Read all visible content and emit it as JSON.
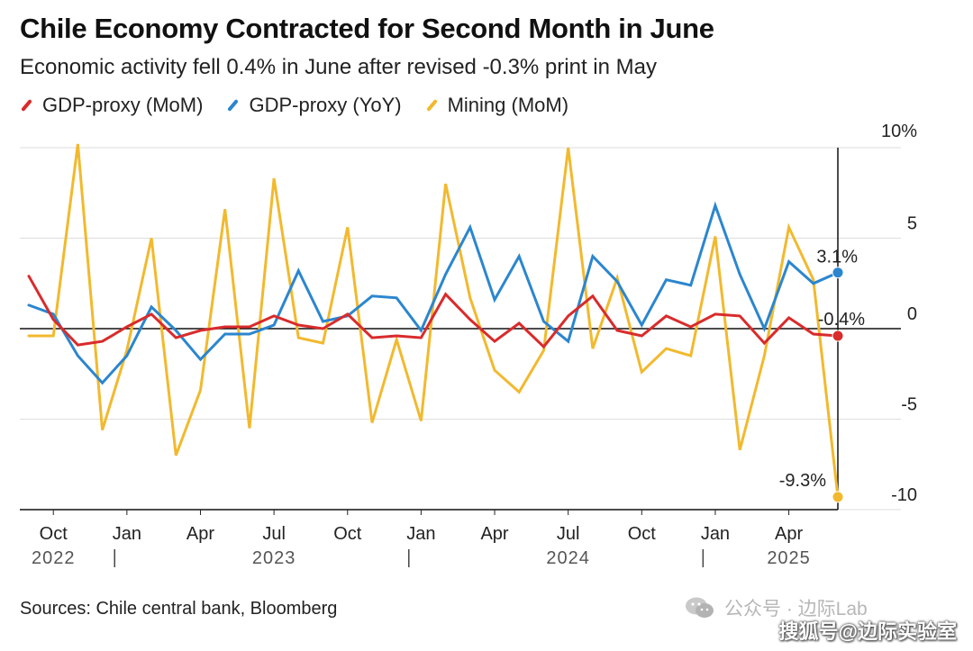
{
  "header": {
    "title": "Chile Economy Contracted for Second Month in June",
    "subtitle": "Economic activity fell 0.4% in June after revised -0.3% print in May"
  },
  "footer": {
    "source": "Sources: Chile central bank, Bloomberg"
  },
  "watermark": {
    "line1": "公众号 · 边际Lab",
    "line2": "搜狐号@边际实验室",
    "icon": "wechat-icon"
  },
  "colors": {
    "gdp_mom": "#d92b2b",
    "gdp_yoy": "#2b86cf",
    "mining_mom": "#f2b92e",
    "axis": "#111111",
    "grid": "#dddddd"
  },
  "chart_data": {
    "type": "line",
    "x": [
      "2022-09",
      "2022-10",
      "2022-11",
      "2022-12",
      "2023-01",
      "2023-02",
      "2023-03",
      "2023-04",
      "2023-05",
      "2023-06",
      "2023-07",
      "2023-08",
      "2023-09",
      "2023-10",
      "2023-11",
      "2023-12",
      "2024-01",
      "2024-02",
      "2024-03",
      "2024-04",
      "2024-05",
      "2024-06",
      "2024-07",
      "2024-08",
      "2024-09",
      "2024-10",
      "2024-11",
      "2024-12",
      "2025-01",
      "2025-02",
      "2025-03",
      "2025-04",
      "2025-05",
      "2025-06"
    ],
    "series": [
      {
        "name": "GDP-proxy (MoM)",
        "color": "#d92b2b",
        "values": [
          2.9,
          0.5,
          -0.9,
          -0.7,
          0.1,
          0.8,
          -0.5,
          -0.1,
          0.1,
          0.1,
          0.7,
          0.2,
          0.0,
          0.8,
          -0.5,
          -0.4,
          -0.5,
          1.9,
          0.5,
          -0.7,
          0.3,
          -1.0,
          0.7,
          1.8,
          -0.1,
          -0.4,
          0.7,
          0.1,
          0.8,
          0.7,
          -0.8,
          0.6,
          -0.3,
          -0.4
        ]
      },
      {
        "name": "GDP-proxy (YoY)",
        "color": "#2b86cf",
        "values": [
          1.3,
          0.8,
          -1.5,
          -3.0,
          -1.5,
          1.2,
          -0.1,
          -1.7,
          -0.3,
          -0.3,
          0.2,
          3.2,
          0.4,
          0.7,
          1.8,
          1.7,
          -0.1,
          3.0,
          5.6,
          1.6,
          4.0,
          0.4,
          -0.7,
          4.0,
          2.6,
          0.2,
          2.7,
          2.4,
          6.8,
          3.0,
          0.0,
          3.7,
          2.5,
          3.1
        ]
      },
      {
        "name": "Mining (MoM)",
        "color": "#f2b92e",
        "values": [
          -0.4,
          -0.4,
          10.2,
          -5.6,
          -1.2,
          5.0,
          -7.0,
          -3.4,
          6.6,
          -5.5,
          8.3,
          -0.5,
          -0.8,
          5.6,
          -5.2,
          -0.6,
          -5.1,
          8.0,
          1.7,
          -2.3,
          -3.5,
          -1.2,
          10.0,
          -1.1,
          2.8,
          -2.4,
          -1.1,
          -1.5,
          5.1,
          -6.7,
          -1.5,
          5.6,
          2.7,
          -9.3
        ]
      }
    ],
    "y_ticks": [
      "10%",
      "5",
      "0",
      "-5",
      "-10"
    ],
    "y_tick_values": [
      10,
      5,
      0,
      -5,
      -10
    ],
    "ylim": [
      -10,
      10
    ],
    "x_ticks": [
      {
        "label": "Oct",
        "index": 1
      },
      {
        "label": "Jan",
        "index": 4
      },
      {
        "label": "Apr",
        "index": 7
      },
      {
        "label": "Jul",
        "index": 10
      },
      {
        "label": "Oct",
        "index": 13
      },
      {
        "label": "Jan",
        "index": 16
      },
      {
        "label": "Apr",
        "index": 19
      },
      {
        "label": "Jul",
        "index": 22
      },
      {
        "label": "Oct",
        "index": 25
      },
      {
        "label": "Jan",
        "index": 28
      },
      {
        "label": "Apr",
        "index": 31
      }
    ],
    "years": [
      {
        "label": "2022",
        "index": 1
      },
      {
        "label": "2023",
        "index": 10
      },
      {
        "label": "2024",
        "index": 22
      },
      {
        "label": "2025",
        "index": 31
      }
    ],
    "year_separators": [
      3.5,
      15.5,
      27.5
    ],
    "annotations": [
      {
        "text": "3.1%",
        "series": 1
      },
      {
        "text": "-0.4%",
        "series": 0
      },
      {
        "text": "-9.3%",
        "series": 2
      }
    ],
    "grid": true,
    "legend": "top-left"
  }
}
